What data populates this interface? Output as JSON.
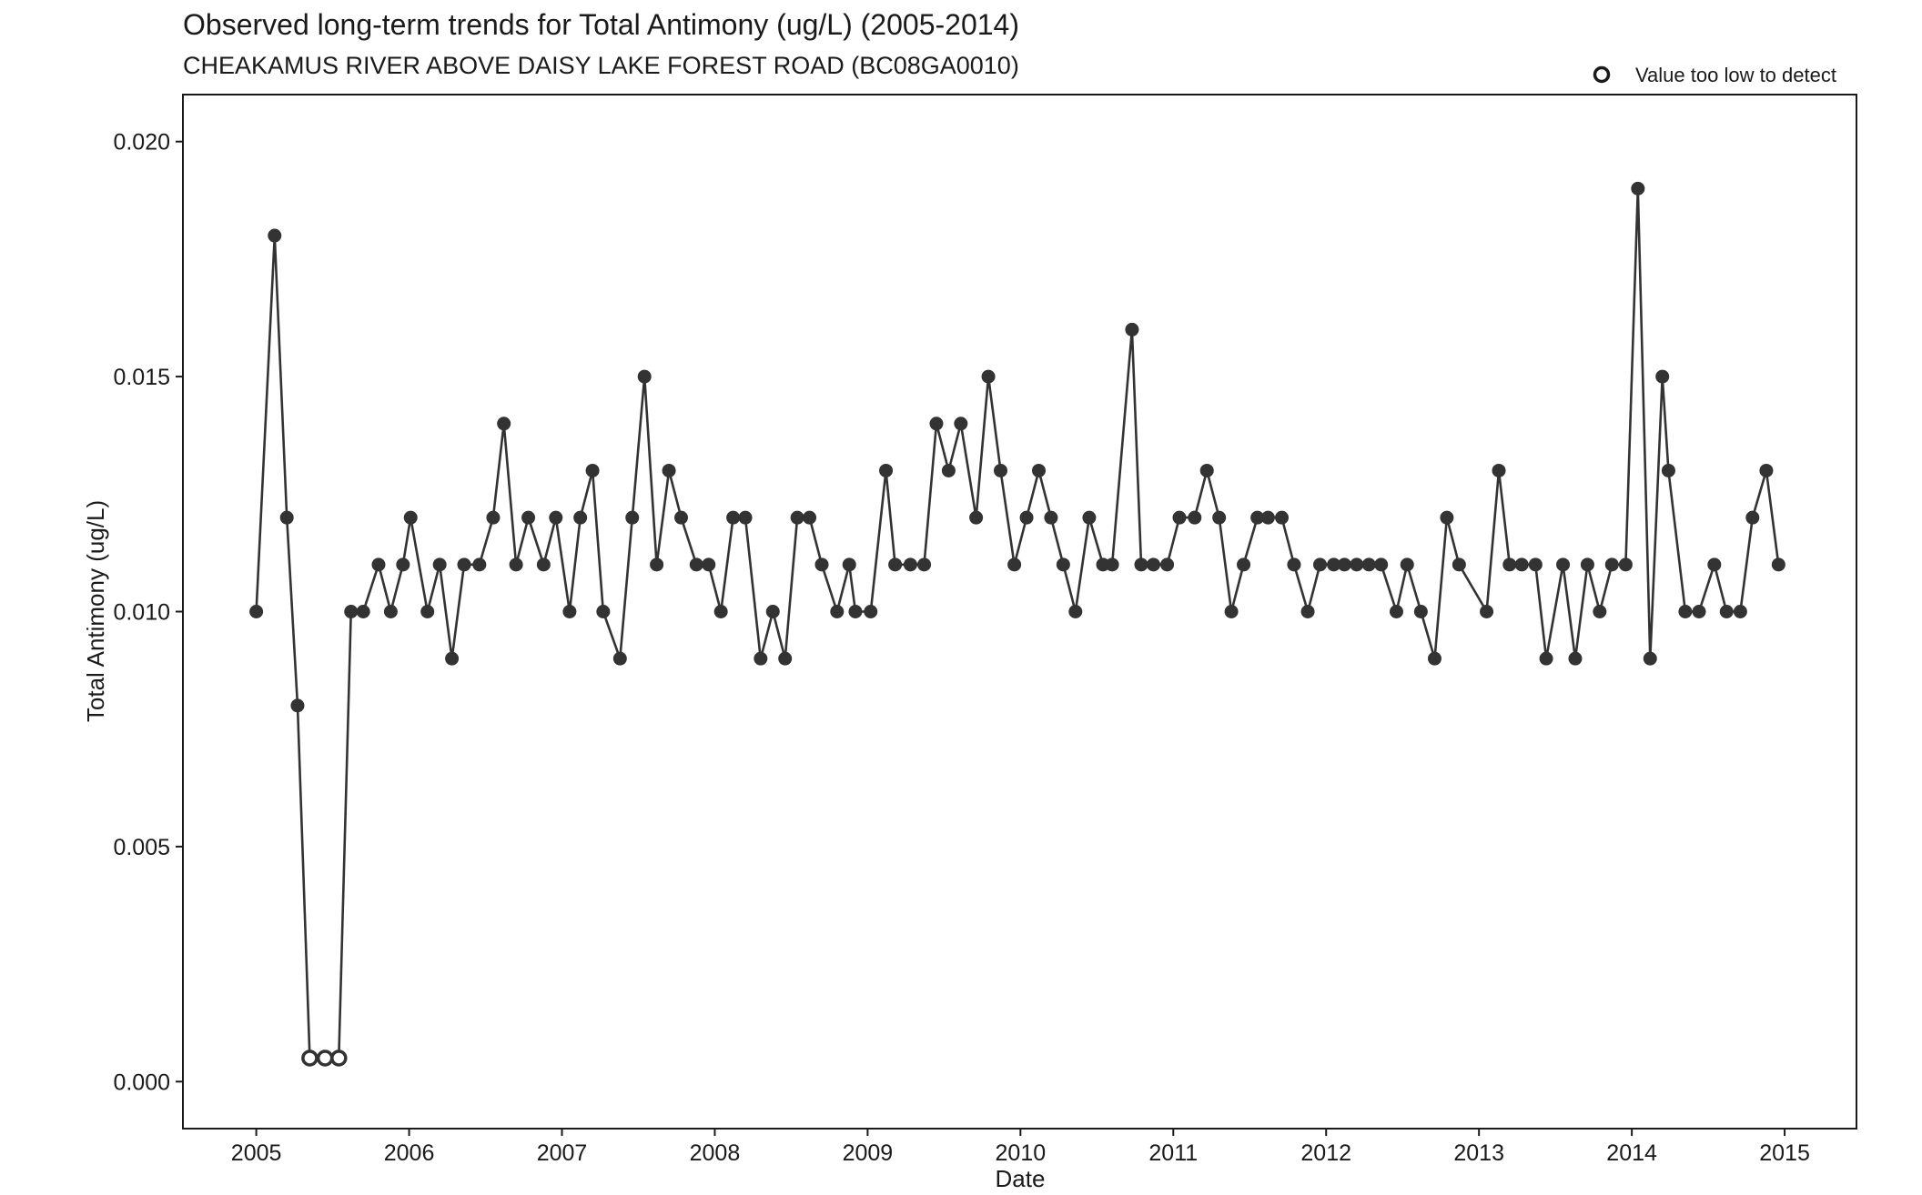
{
  "chart_data": {
    "type": "line",
    "title": "Observed long-term trends for Total Antimony (ug/L) (2005-2014)",
    "subtitle": "CHEAKAMUS RIVER ABOVE DAISY LAKE FOREST ROAD (BC08GA0010)",
    "xlabel": "Date",
    "ylabel": "Total Antimony (ug/L)",
    "xlim": [
      2004.52,
      2015.47
    ],
    "ylim": [
      -0.001,
      0.021
    ],
    "x_ticks": [
      2005,
      2006,
      2007,
      2008,
      2009,
      2010,
      2011,
      2012,
      2013,
      2014,
      2015
    ],
    "x_tick_labels": [
      "2005",
      "2006",
      "2007",
      "2008",
      "2009",
      "2010",
      "2011",
      "2012",
      "2013",
      "2014",
      "2015"
    ],
    "y_ticks": [
      0,
      0.005,
      0.01,
      0.015,
      0.02
    ],
    "y_tick_labels": [
      "0.000",
      "0.005",
      "0.010",
      "0.015",
      "0.020"
    ],
    "grid": false,
    "legend": {
      "position": "top-right",
      "entries": [
        {
          "label": "Value too low to detect",
          "marker": "open-circle"
        }
      ]
    },
    "colors": {
      "line": "#333333",
      "marker": "#333333",
      "axis": "#1a1a1a"
    },
    "series": [
      {
        "points": [
          [
            2005.0,
            0.01
          ],
          [
            2005.12,
            0.018
          ],
          [
            2005.2,
            0.012
          ],
          [
            2005.27,
            0.008
          ],
          [
            2005.35,
            0.0005,
            "below-detection"
          ],
          [
            2005.45,
            0.0005,
            "below-detection"
          ],
          [
            2005.54,
            0.0005,
            "below-detection"
          ],
          [
            2005.62,
            0.01
          ],
          [
            2005.7,
            0.01
          ],
          [
            2005.8,
            0.011
          ],
          [
            2005.88,
            0.01
          ],
          [
            2005.96,
            0.011
          ],
          [
            2006.01,
            0.012
          ],
          [
            2006.12,
            0.01
          ],
          [
            2006.2,
            0.011
          ],
          [
            2006.28,
            0.009
          ],
          [
            2006.36,
            0.011
          ],
          [
            2006.46,
            0.011
          ],
          [
            2006.55,
            0.012
          ],
          [
            2006.62,
            0.014
          ],
          [
            2006.7,
            0.011
          ],
          [
            2006.78,
            0.012
          ],
          [
            2006.88,
            0.011
          ],
          [
            2006.96,
            0.012
          ],
          [
            2007.05,
            0.01
          ],
          [
            2007.12,
            0.012
          ],
          [
            2007.2,
            0.013
          ],
          [
            2007.27,
            0.01
          ],
          [
            2007.38,
            0.009
          ],
          [
            2007.46,
            0.012
          ],
          [
            2007.54,
            0.015
          ],
          [
            2007.62,
            0.011
          ],
          [
            2007.7,
            0.013
          ],
          [
            2007.78,
            0.012
          ],
          [
            2007.88,
            0.011
          ],
          [
            2007.96,
            0.011
          ],
          [
            2008.04,
            0.01
          ],
          [
            2008.12,
            0.012
          ],
          [
            2008.2,
            0.012
          ],
          [
            2008.3,
            0.009
          ],
          [
            2008.38,
            0.01
          ],
          [
            2008.46,
            0.009
          ],
          [
            2008.54,
            0.012
          ],
          [
            2008.62,
            0.012
          ],
          [
            2008.7,
            0.011
          ],
          [
            2008.8,
            0.01
          ],
          [
            2008.88,
            0.011
          ],
          [
            2008.92,
            0.01
          ],
          [
            2009.02,
            0.01
          ],
          [
            2009.12,
            0.013
          ],
          [
            2009.18,
            0.011
          ],
          [
            2009.28,
            0.011
          ],
          [
            2009.37,
            0.011
          ],
          [
            2009.45,
            0.014
          ],
          [
            2009.53,
            0.013
          ],
          [
            2009.61,
            0.014
          ],
          [
            2009.71,
            0.012
          ],
          [
            2009.79,
            0.015
          ],
          [
            2009.87,
            0.013
          ],
          [
            2009.96,
            0.011
          ],
          [
            2010.04,
            0.012
          ],
          [
            2010.12,
            0.013
          ],
          [
            2010.2,
            0.012
          ],
          [
            2010.28,
            0.011
          ],
          [
            2010.36,
            0.01
          ],
          [
            2010.45,
            0.012
          ],
          [
            2010.54,
            0.011
          ],
          [
            2010.6,
            0.011
          ],
          [
            2010.73,
            0.016
          ],
          [
            2010.79,
            0.011
          ],
          [
            2010.87,
            0.011
          ],
          [
            2010.96,
            0.011
          ],
          [
            2011.04,
            0.012
          ],
          [
            2011.14,
            0.012
          ],
          [
            2011.22,
            0.013
          ],
          [
            2011.3,
            0.012
          ],
          [
            2011.38,
            0.01
          ],
          [
            2011.46,
            0.011
          ],
          [
            2011.55,
            0.012
          ],
          [
            2011.62,
            0.012
          ],
          [
            2011.71,
            0.012
          ],
          [
            2011.79,
            0.011
          ],
          [
            2011.88,
            0.01
          ],
          [
            2011.96,
            0.011
          ],
          [
            2012.05,
            0.011
          ],
          [
            2012.12,
            0.011
          ],
          [
            2012.2,
            0.011
          ],
          [
            2012.28,
            0.011
          ],
          [
            2012.36,
            0.011
          ],
          [
            2012.46,
            0.01
          ],
          [
            2012.53,
            0.011
          ],
          [
            2012.62,
            0.01
          ],
          [
            2012.71,
            0.009
          ],
          [
            2012.79,
            0.012
          ],
          [
            2012.87,
            0.011
          ],
          [
            2013.05,
            0.01
          ],
          [
            2013.13,
            0.013
          ],
          [
            2013.2,
            0.011
          ],
          [
            2013.28,
            0.011
          ],
          [
            2013.37,
            0.011
          ],
          [
            2013.44,
            0.009
          ],
          [
            2013.55,
            0.011
          ],
          [
            2013.63,
            0.009
          ],
          [
            2013.71,
            0.011
          ],
          [
            2013.79,
            0.01
          ],
          [
            2013.87,
            0.011
          ],
          [
            2013.96,
            0.011
          ],
          [
            2014.04,
            0.019
          ],
          [
            2014.12,
            0.009
          ],
          [
            2014.2,
            0.015
          ],
          [
            2014.24,
            0.013
          ],
          [
            2014.35,
            0.01
          ],
          [
            2014.44,
            0.01
          ],
          [
            2014.54,
            0.011
          ],
          [
            2014.62,
            0.01
          ],
          [
            2014.71,
            0.01
          ],
          [
            2014.79,
            0.012
          ],
          [
            2014.88,
            0.013
          ],
          [
            2014.96,
            0.011
          ]
        ]
      }
    ]
  }
}
